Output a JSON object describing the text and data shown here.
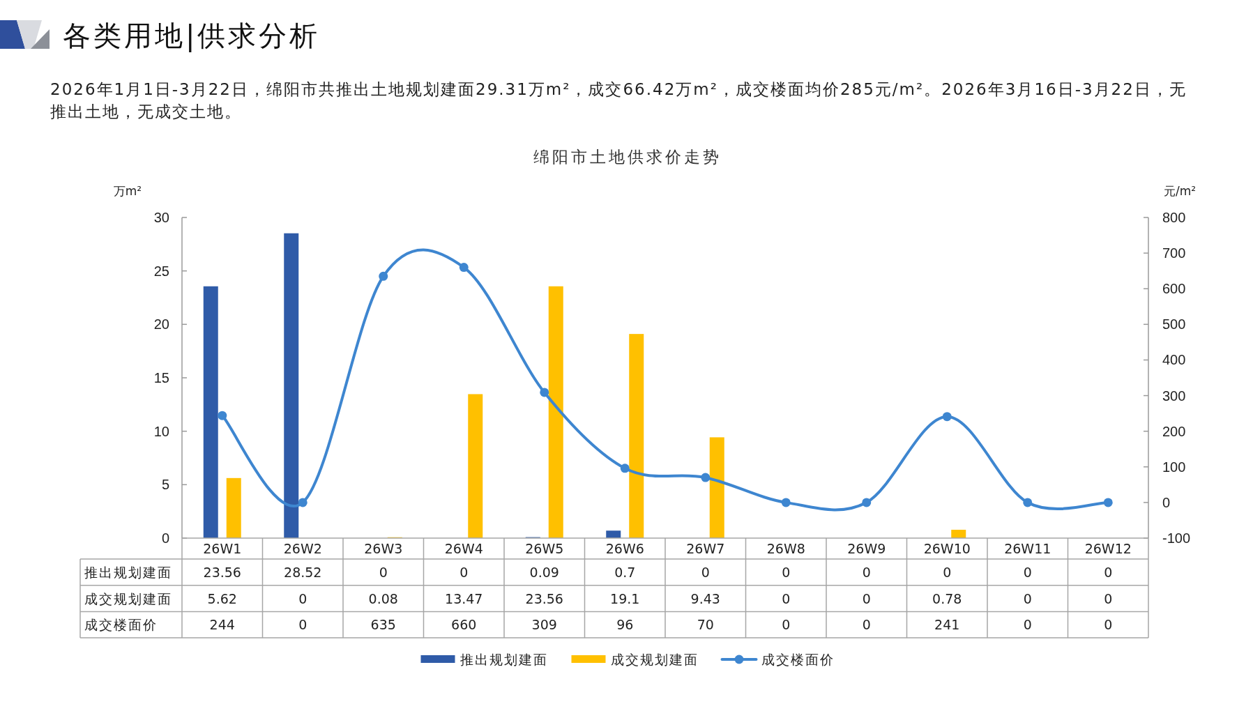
{
  "chart_data": {
    "type": "bar",
    "title": "绵阳市土地供求价走势",
    "annotations": [
      "各类用地|供求分析",
      "2026年1月1日-3月22日，绵阳市共推出土地规划建面29.31万m²，成交66.42万m²，成交楼面均价285元/m²。2026年3月16日-3月22日，无推出土地，无成交土地。"
    ],
    "ylabel": "万m²",
    "y2label": "元/m²",
    "categories": [
      "26W1",
      "26W2",
      "26W3",
      "26W4",
      "26W5",
      "26W6",
      "26W7",
      "26W8",
      "26W9",
      "26W10",
      "26W11",
      "26W12"
    ],
    "series": [
      {
        "name": "推出规划建面",
        "color": "#2f5ba8",
        "values": [
          23.56,
          28.52,
          0,
          0,
          0.09,
          0.7,
          0,
          0,
          0,
          0,
          0,
          0
        ]
      },
      {
        "name": "成交规划建面",
        "color": "#ffc000",
        "values": [
          5.62,
          0,
          0.08,
          13.47,
          23.56,
          19.1,
          9.43,
          0,
          0,
          0.78,
          0,
          0
        ]
      },
      {
        "name": "成交楼面价",
        "type": "line",
        "axis": "y2",
        "marker": "circle",
        "color": "#3e86d0",
        "values": [
          244,
          0,
          635,
          660,
          309,
          96,
          70,
          0,
          0,
          241,
          0,
          0
        ]
      }
    ],
    "ylim": [
      0,
      30
    ],
    "yticks": [
      0,
      5,
      10,
      15,
      20,
      25,
      30
    ],
    "y2lim": [
      -100,
      800
    ],
    "y2ticks": [
      -100,
      0,
      100,
      200,
      300,
      400,
      500,
      600,
      700,
      800
    ],
    "legend": "bottom",
    "data_labels": true
  }
}
